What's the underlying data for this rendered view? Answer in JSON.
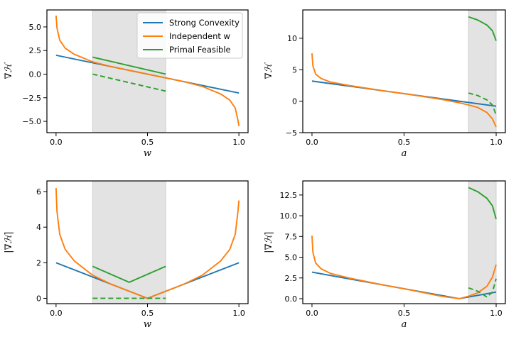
{
  "colors": {
    "strong": "#1f77b4",
    "independent": "#ff7f0e",
    "primal": "#2ca02c",
    "shade": "#e3e3e3"
  },
  "legend": {
    "strong": "Strong Convexity",
    "independent": "Independent w",
    "primal": "Primal Feasible"
  },
  "chart_data": [
    {
      "type": "line",
      "id": "top-left",
      "xlabel": "w",
      "ylabel": "∇ℋ",
      "xlim": [
        -0.05,
        1.05
      ],
      "ylim": [
        -6.2,
        6.8
      ],
      "xticks": [
        0.0,
        0.5,
        1.0
      ],
      "yticks": [
        -5.0,
        -2.5,
        0.0,
        2.5,
        5.0
      ],
      "xtick_labels": [
        "0.0",
        "0.5",
        "1.0"
      ],
      "ytick_labels": [
        "−5.0",
        "−2.5",
        "0.0",
        "2.5",
        "5.0"
      ],
      "shaded_region": [
        0.2,
        0.6
      ],
      "legend": true,
      "series": [
        {
          "name": "Strong Convexity",
          "color_key": "strong",
          "dashed": false,
          "x": [
            0.0,
            1.0
          ],
          "y": [
            2.0,
            -2.0
          ]
        },
        {
          "name": "Independent w",
          "color_key": "independent",
          "dashed": false,
          "x": [
            0.0,
            0.005,
            0.02,
            0.05,
            0.1,
            0.2,
            0.3,
            0.4,
            0.5,
            0.6,
            0.7,
            0.8,
            0.9,
            0.95,
            0.98,
            0.995,
            1.0
          ],
          "y": [
            6.2,
            4.9,
            3.6,
            2.75,
            2.1,
            1.3,
            0.8,
            0.4,
            0.0,
            -0.4,
            -0.8,
            -1.3,
            -2.1,
            -2.75,
            -3.6,
            -4.9,
            -5.5
          ]
        },
        {
          "name": "Primal Feasible",
          "color_key": "primal",
          "dashed": false,
          "x": [
            0.2,
            0.6
          ],
          "y": [
            1.8,
            0.0
          ]
        },
        {
          "name": "Primal Feasible (dual)",
          "color_key": "primal",
          "dashed": true,
          "x": [
            0.2,
            0.6
          ],
          "y": [
            0.0,
            -1.8
          ]
        }
      ]
    },
    {
      "type": "line",
      "id": "top-right",
      "xlabel": "a",
      "ylabel": "∇ℋ",
      "xlim": [
        -0.05,
        1.05
      ],
      "ylim": [
        -5.0,
        14.5
      ],
      "xticks": [
        0.0,
        0.5,
        1.0
      ],
      "yticks": [
        -5,
        0,
        5,
        10
      ],
      "xtick_labels": [
        "0.0",
        "0.5",
        "1.0"
      ],
      "ytick_labels": [
        "−5",
        "0",
        "5",
        "10"
      ],
      "shaded_region": [
        0.85,
        1.0
      ],
      "legend": false,
      "series": [
        {
          "name": "Strong Convexity",
          "color_key": "strong",
          "dashed": false,
          "x": [
            0.0,
            1.0
          ],
          "y": [
            3.2,
            -0.8
          ]
        },
        {
          "name": "Independent w",
          "color_key": "independent",
          "dashed": false,
          "x": [
            0.0,
            0.005,
            0.02,
            0.05,
            0.1,
            0.2,
            0.3,
            0.4,
            0.5,
            0.6,
            0.7,
            0.8,
            0.85,
            0.9,
            0.95,
            0.98,
            1.0
          ],
          "y": [
            7.6,
            5.6,
            4.3,
            3.6,
            3.05,
            2.5,
            2.05,
            1.6,
            1.2,
            0.75,
            0.3,
            -0.25,
            -0.6,
            -1.0,
            -1.8,
            -2.8,
            -4.1
          ]
        },
        {
          "name": "Primal Feasible",
          "color_key": "primal",
          "dashed": false,
          "x": [
            0.85,
            0.9,
            0.95,
            0.98,
            1.0
          ],
          "y": [
            13.4,
            12.9,
            12.1,
            11.2,
            9.6
          ]
        },
        {
          "name": "Primal Feasible (dual)",
          "color_key": "primal",
          "dashed": true,
          "x": [
            0.85,
            0.9,
            0.95,
            0.98,
            1.0
          ],
          "y": [
            1.3,
            0.9,
            0.2,
            -0.6,
            -2.2
          ]
        }
      ]
    },
    {
      "type": "line",
      "id": "bottom-left",
      "xlabel": "w",
      "ylabel": "|∇ℋ|",
      "xlim": [
        -0.05,
        1.05
      ],
      "ylim": [
        -0.3,
        6.6
      ],
      "xticks": [
        0.0,
        0.5,
        1.0
      ],
      "yticks": [
        0,
        2,
        4,
        6
      ],
      "xtick_labels": [
        "0.0",
        "0.5",
        "1.0"
      ],
      "ytick_labels": [
        "0",
        "2",
        "4",
        "6"
      ],
      "shaded_region": [
        0.2,
        0.6
      ],
      "legend": false,
      "series": [
        {
          "name": "Strong Convexity",
          "color_key": "strong",
          "dashed": false,
          "x": [
            0.0,
            0.5,
            1.0
          ],
          "y": [
            2.0,
            0.0,
            2.0
          ]
        },
        {
          "name": "Independent w",
          "color_key": "independent",
          "dashed": false,
          "x": [
            0.0,
            0.005,
            0.02,
            0.05,
            0.1,
            0.2,
            0.3,
            0.4,
            0.5,
            0.6,
            0.7,
            0.8,
            0.9,
            0.95,
            0.98,
            0.995,
            1.0
          ],
          "y": [
            6.2,
            4.9,
            3.6,
            2.75,
            2.1,
            1.3,
            0.8,
            0.4,
            0.0,
            0.4,
            0.8,
            1.3,
            2.1,
            2.75,
            3.6,
            4.9,
            5.5
          ]
        },
        {
          "name": "Primal Feasible",
          "color_key": "primal",
          "dashed": false,
          "x": [
            0.2,
            0.4,
            0.6
          ],
          "y": [
            1.8,
            0.9,
            1.8
          ]
        },
        {
          "name": "Primal Feasible (dual)",
          "color_key": "primal",
          "dashed": true,
          "x": [
            0.2,
            0.6
          ],
          "y": [
            0.0,
            0.0
          ]
        }
      ]
    },
    {
      "type": "line",
      "id": "bottom-right",
      "xlabel": "a",
      "ylabel": "|∇ℋ|",
      "xlim": [
        -0.05,
        1.05
      ],
      "ylim": [
        -0.6,
        14.2
      ],
      "xticks": [
        0.0,
        0.5,
        1.0
      ],
      "yticks": [
        0.0,
        2.5,
        5.0,
        7.5,
        10.0,
        12.5
      ],
      "xtick_labels": [
        "0.0",
        "0.5",
        "1.0"
      ],
      "ytick_labels": [
        "0.0",
        "2.5",
        "5.0",
        "7.5",
        "10.0",
        "12.5"
      ],
      "shaded_region": [
        0.85,
        1.0
      ],
      "legend": false,
      "series": [
        {
          "name": "Strong Convexity",
          "color_key": "strong",
          "dashed": false,
          "x": [
            0.0,
            0.8,
            1.0
          ],
          "y": [
            3.2,
            0.0,
            0.8
          ]
        },
        {
          "name": "Independent w",
          "color_key": "independent",
          "dashed": false,
          "x": [
            0.0,
            0.005,
            0.02,
            0.05,
            0.1,
            0.2,
            0.3,
            0.4,
            0.5,
            0.6,
            0.7,
            0.8,
            0.85,
            0.9,
            0.95,
            0.98,
            1.0
          ],
          "y": [
            7.6,
            5.6,
            4.3,
            3.6,
            3.05,
            2.5,
            2.05,
            1.6,
            1.2,
            0.75,
            0.3,
            0.0,
            0.3,
            0.7,
            1.5,
            2.6,
            4.1
          ]
        },
        {
          "name": "Primal Feasible",
          "color_key": "primal",
          "dashed": false,
          "x": [
            0.85,
            0.9,
            0.95,
            0.98,
            1.0
          ],
          "y": [
            13.4,
            12.9,
            12.1,
            11.2,
            9.6
          ]
        },
        {
          "name": "Primal Feasible (dual)",
          "color_key": "primal",
          "dashed": true,
          "x": [
            0.85,
            0.9,
            0.95,
            0.98,
            1.0
          ],
          "y": [
            1.3,
            0.9,
            0.2,
            0.8,
            2.4
          ]
        }
      ]
    }
  ]
}
